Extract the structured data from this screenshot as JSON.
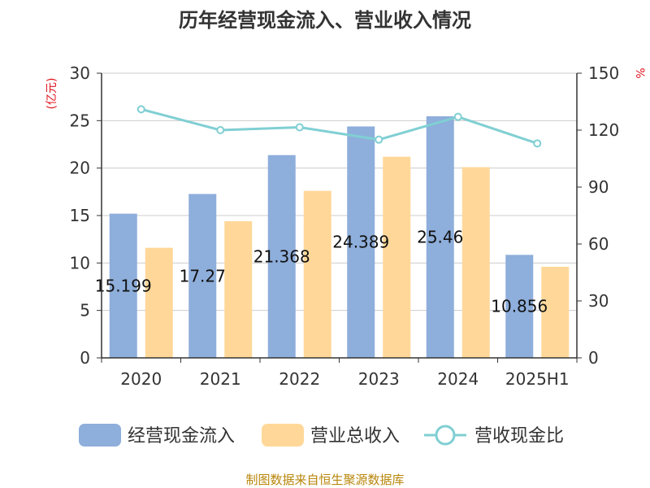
{
  "chart_data": {
    "type": "bar",
    "title": "历年经营现金流入、营业收入情况",
    "categories": [
      "2020",
      "2021",
      "2022",
      "2023",
      "2024",
      "2025H1"
    ],
    "left_axis": {
      "unit": "(亿元)",
      "ylim": [
        0,
        30
      ],
      "ticks": [
        "0",
        "5",
        "10",
        "15",
        "20",
        "25",
        "30"
      ]
    },
    "right_axis": {
      "unit": "%",
      "ylim": [
        0,
        150
      ],
      "ticks": [
        "0",
        "30",
        "60",
        "90",
        "120",
        "150"
      ]
    },
    "grid": true,
    "legend_position": "bottom",
    "series": [
      {
        "name": "经营现金流入",
        "kind": "bar",
        "axis": "left",
        "color": "#8eaedb",
        "values": [
          15.199,
          17.27,
          21.368,
          24.389,
          25.46,
          10.856
        ],
        "labels": [
          "15.199",
          "17.27",
          "21.368",
          "24.389",
          "25.46",
          "10.856"
        ]
      },
      {
        "name": "营业总收入",
        "kind": "bar",
        "axis": "left",
        "color": "#ffd899",
        "values": [
          11.6,
          14.4,
          17.6,
          21.2,
          20.1,
          9.6
        ]
      },
      {
        "name": "营收现金比",
        "kind": "line",
        "axis": "right",
        "color": "#80cfd3",
        "values": [
          131,
          120,
          121.5,
          115,
          127,
          113
        ]
      }
    ]
  },
  "footer": {
    "source": "制图数据来自恒生聚源数据库"
  }
}
